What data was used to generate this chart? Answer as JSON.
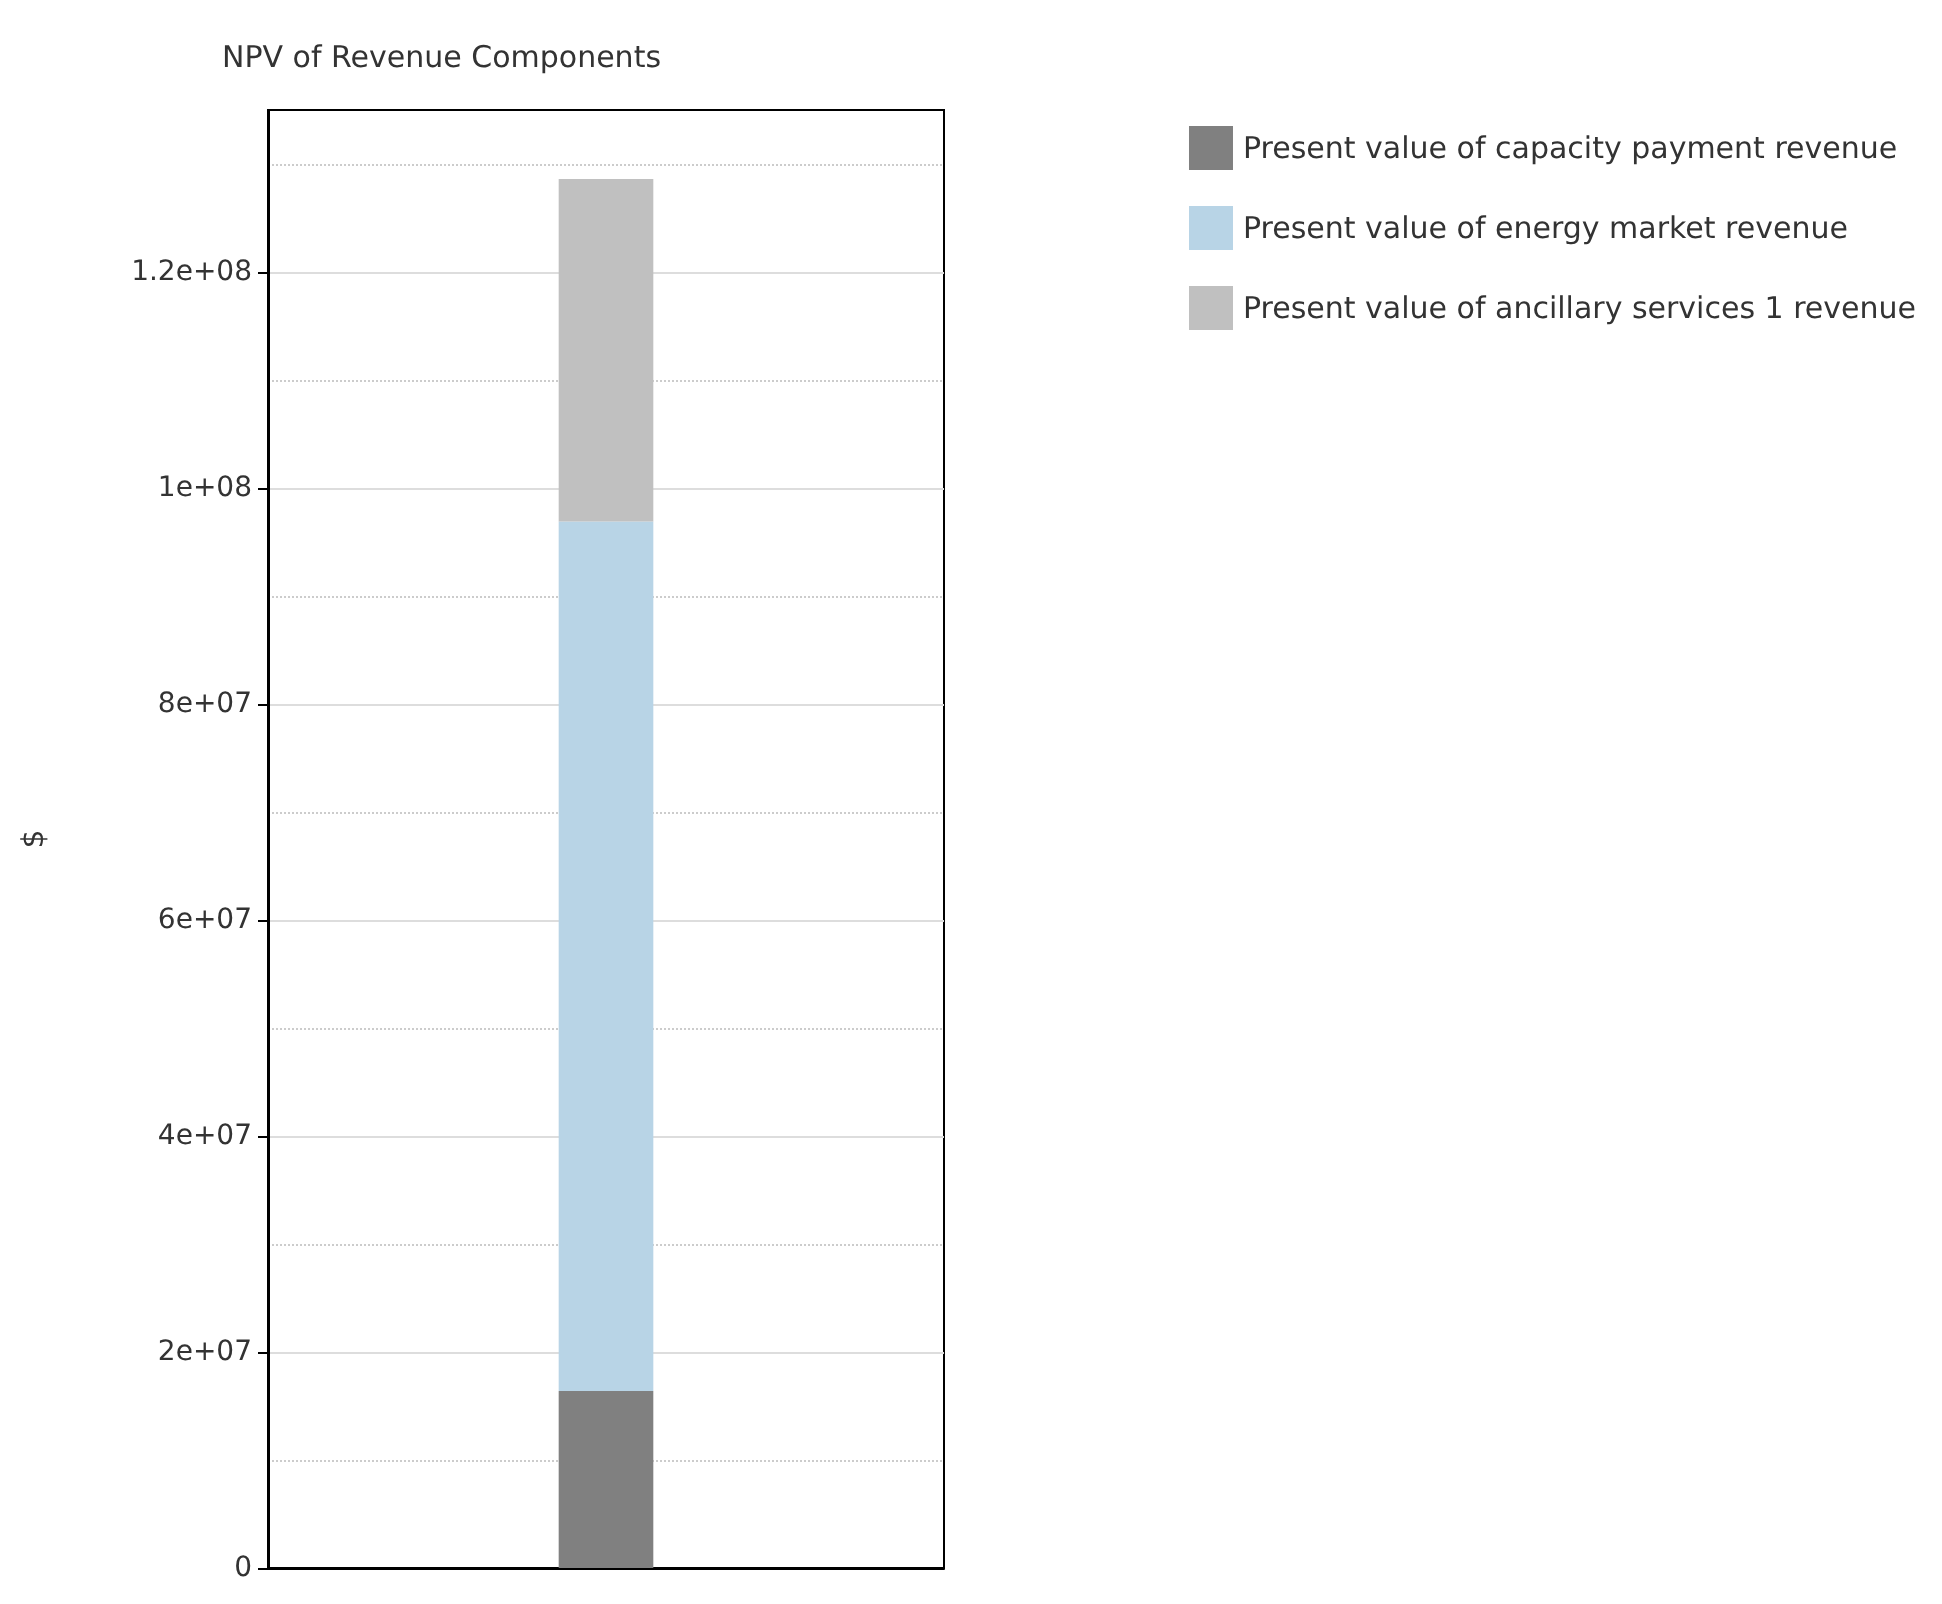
{
  "chart_data": {
    "type": "bar",
    "title": "NPV of Revenue Components",
    "ylabel": "$",
    "categories": [
      null
    ],
    "stacked": true,
    "series": [
      {
        "name": "Present value of capacity payment revenue",
        "color": "#808080",
        "values": [
          16400000
        ]
      },
      {
        "name": "Present value of energy market revenue",
        "color": "#b8d4e6",
        "values": [
          80500000
        ]
      },
      {
        "name": "Present value of ancillary services 1 revenue",
        "color": "#c0c0c0",
        "values": [
          31700000
        ]
      }
    ],
    "ylim": [
      0,
      135000000
    ],
    "yticks": [
      0,
      {
        "value": 20000000,
        "label": "2e+07"
      },
      {
        "value": 40000000,
        "label": "4e+07"
      },
      {
        "value": 60000000,
        "label": "6e+07"
      },
      {
        "value": 80000000,
        "label": "8e+07"
      },
      {
        "value": 100000000,
        "label": "1e+08"
      },
      {
        "value": 120000000,
        "label": "1.2e+08"
      }
    ],
    "grid": true,
    "legend": "top right"
  }
}
